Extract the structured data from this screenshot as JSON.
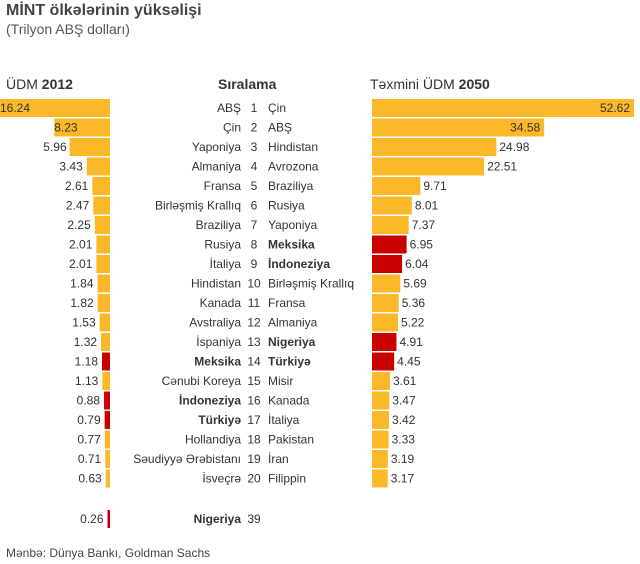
{
  "title": "MİNT ölkələrinin yüksəlişi",
  "subtitle": "(Trilyon ABŞ dolları)",
  "source": "Mənbə: Dünya Bankı, Goldman Sachs",
  "colors": {
    "normal": "#fbb829",
    "highlight": "#c80000"
  },
  "chart_data": {
    "type": "bar",
    "title": "MİNT ölkələrinin yüksəlişi",
    "unit": "Trilyon ABŞ dolları",
    "left": {
      "header_prefix": "ÜDM ",
      "header_year": "2012",
      "rows": [
        {
          "rank": "1",
          "country": "ABŞ",
          "value": 16.24,
          "label": "16.24",
          "highlight": false
        },
        {
          "rank": "2",
          "country": "Çin",
          "value": 8.23,
          "label": "8.23",
          "highlight": false
        },
        {
          "rank": "3",
          "country": "Yaponiya",
          "value": 5.96,
          "label": "5.96",
          "highlight": false
        },
        {
          "rank": "4",
          "country": "Almaniya",
          "value": 3.43,
          "label": "3.43",
          "highlight": false
        },
        {
          "rank": "5",
          "country": "Fransa",
          "value": 2.61,
          "label": "2.61",
          "highlight": false
        },
        {
          "rank": "6",
          "country": "Birləşmiş Krallıq",
          "value": 2.47,
          "label": "2.47",
          "highlight": false
        },
        {
          "rank": "7",
          "country": "Braziliya",
          "value": 2.25,
          "label": "2.25",
          "highlight": false
        },
        {
          "rank": "8",
          "country": "Rusiya",
          "value": 2.01,
          "label": "2.01",
          "highlight": false
        },
        {
          "rank": "9",
          "country": "İtaliya",
          "value": 2.01,
          "label": "2.01",
          "highlight": false
        },
        {
          "rank": "10",
          "country": "Hindistan",
          "value": 1.84,
          "label": "1.84",
          "highlight": false
        },
        {
          "rank": "11",
          "country": "Kanada",
          "value": 1.82,
          "label": "1.82",
          "highlight": false
        },
        {
          "rank": "12",
          "country": "Avstraliya",
          "value": 1.53,
          "label": "1.53",
          "highlight": false
        },
        {
          "rank": "13",
          "country": "İspaniya",
          "value": 1.32,
          "label": "1.32",
          "highlight": false
        },
        {
          "rank": "14",
          "country": "Meksika",
          "value": 1.18,
          "label": "1.18",
          "highlight": true
        },
        {
          "rank": "15",
          "country": "Cənubi Koreya",
          "value": 1.13,
          "label": "1.13",
          "highlight": false
        },
        {
          "rank": "16",
          "country": "İndoneziya",
          "value": 0.88,
          "label": "0.88",
          "highlight": true
        },
        {
          "rank": "17",
          "country": "Türkiyə",
          "value": 0.79,
          "label": "0.79",
          "highlight": true
        },
        {
          "rank": "18",
          "country": "Hollandiya",
          "value": 0.77,
          "label": "0.77",
          "highlight": false
        },
        {
          "rank": "19",
          "country": "Səudiyyə Ərəbistanı",
          "value": 0.71,
          "label": "0.71",
          "highlight": false
        },
        {
          "rank": "20",
          "country": "İsveçrə",
          "value": 0.63,
          "label": "0.63",
          "highlight": false
        }
      ],
      "extra": {
        "rank": "39",
        "country": "Nigeriya",
        "value": 0.26,
        "label": "0.26",
        "highlight": true
      }
    },
    "ranking_header": "Sıralama",
    "right": {
      "header_prefix": "Təxmini ÜDM ",
      "header_year": "2050",
      "rows": [
        {
          "country": "Çin",
          "value": 52.62,
          "label": "52.62",
          "highlight": false
        },
        {
          "country": "ABŞ",
          "value": 34.58,
          "label": "34.58",
          "highlight": false
        },
        {
          "country": "Hindistan",
          "value": 24.98,
          "label": "24.98",
          "highlight": false
        },
        {
          "country": "Avrozona",
          "value": 22.51,
          "label": "22.51",
          "highlight": false
        },
        {
          "country": "Braziliya",
          "value": 9.71,
          "label": "9.71",
          "highlight": false
        },
        {
          "country": "Rusiya",
          "value": 8.01,
          "label": "8.01",
          "highlight": false
        },
        {
          "country": "Yaponiya",
          "value": 7.37,
          "label": "7.37",
          "highlight": false
        },
        {
          "country": "Meksika",
          "value": 6.95,
          "label": "6.95",
          "highlight": true
        },
        {
          "country": "İndoneziya",
          "value": 6.04,
          "label": "6.04",
          "highlight": true
        },
        {
          "country": "Birləşmiş Krallıq",
          "value": 5.69,
          "label": "5.69",
          "highlight": false
        },
        {
          "country": "Fransa",
          "value": 5.36,
          "label": "5.36",
          "highlight": false
        },
        {
          "country": "Almaniya",
          "value": 5.22,
          "label": "5.22",
          "highlight": false
        },
        {
          "country": "Nigeriya",
          "value": 4.91,
          "label": "4.91",
          "highlight": true
        },
        {
          "country": "Türkiyə",
          "value": 4.45,
          "label": "4.45",
          "highlight": true
        },
        {
          "country": "Misir",
          "value": 3.61,
          "label": "3.61",
          "highlight": false
        },
        {
          "country": "Kanada",
          "value": 3.47,
          "label": "3.47",
          "highlight": false
        },
        {
          "country": "İtaliya",
          "value": 3.42,
          "label": "3.42",
          "highlight": false
        },
        {
          "country": "Pakistan",
          "value": 3.33,
          "label": "3.33",
          "highlight": false
        },
        {
          "country": "İran",
          "value": 3.19,
          "label": "3.19",
          "highlight": false
        },
        {
          "country": "Filippin",
          "value": 3.17,
          "label": "3.17",
          "highlight": false
        }
      ]
    }
  }
}
